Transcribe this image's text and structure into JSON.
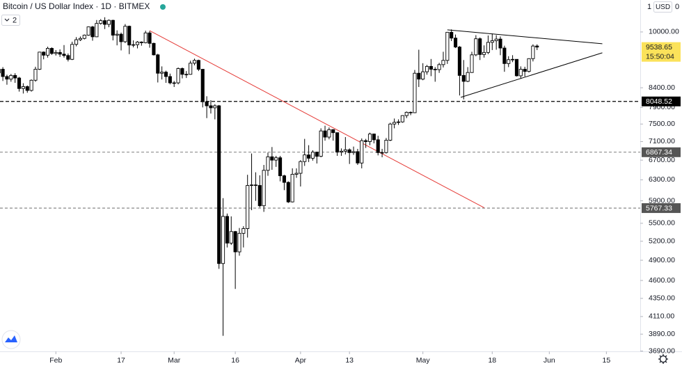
{
  "chart_data": {
    "type": "candlestick",
    "title": "Bitcoin / US Dollar Index · 1D · BITMEX",
    "collapsed_count": "2",
    "price_scale_header": {
      "left": "1",
      "unit": "USD",
      "right": "0"
    },
    "countdown": "15:50:04",
    "log_scale": true,
    "grid": false,
    "up_color": "#ffffff",
    "down_color": "#000000",
    "border_color": "#000000",
    "xlim": [
      0.3,
      157.3
    ],
    "ylim": [
      3646,
      11050
    ],
    "xticks": [
      {
        "value": 14,
        "label": "Feb"
      },
      {
        "value": 30,
        "label": "17"
      },
      {
        "value": 43,
        "label": "Mar"
      },
      {
        "value": 58,
        "label": "16"
      },
      {
        "value": 74,
        "label": "Apr"
      },
      {
        "value": 86,
        "label": "13"
      },
      {
        "value": 104,
        "label": "May"
      },
      {
        "value": 121,
        "label": "18"
      },
      {
        "value": 135,
        "label": "Jun"
      },
      {
        "value": 149,
        "label": "15"
      }
    ],
    "yticks": [
      {
        "value": 10000,
        "label": "10000.00"
      },
      {
        "value": 8400,
        "label": "8400.00"
      },
      {
        "value": 7900,
        "label": "7900.00"
      },
      {
        "value": 7500,
        "label": "7500.00"
      },
      {
        "value": 7100,
        "label": "7100.00"
      },
      {
        "value": 6700,
        "label": "6700.00"
      },
      {
        "value": 6300,
        "label": "6300.00"
      },
      {
        "value": 5900,
        "label": "5900.00"
      },
      {
        "value": 5500,
        "label": "5500.00"
      },
      {
        "value": 5200,
        "label": "5200.00"
      },
      {
        "value": 4900,
        "label": "4900.00"
      },
      {
        "value": 4600,
        "label": "4600.00"
      },
      {
        "value": 4350,
        "label": "4350.00"
      },
      {
        "value": 4110,
        "label": "4110.00"
      },
      {
        "value": 3890,
        "label": "3890.00"
      },
      {
        "value": 3690,
        "label": "3690.00"
      }
    ],
    "price_lines": [
      {
        "value": 8048.52,
        "color": "#000000",
        "dash": "5,3",
        "width": 1.3
      },
      {
        "value": 6867.34,
        "color": "#555555",
        "dash": "4,3",
        "width": 0.8
      },
      {
        "value": 5767.33,
        "color": "#555555",
        "dash": "4,3",
        "width": 0.8
      }
    ],
    "trendlines": [
      {
        "x": [
          37,
          119
        ],
        "y": [
          10040,
          5775
        ],
        "color": "#e53935"
      },
      {
        "x": [
          110,
          148
        ],
        "y": [
          10066,
          9637
        ],
        "color": "#000000"
      },
      {
        "x": [
          113.3,
          148
        ],
        "y": [
          8153,
          9369
        ],
        "color": "#000000"
      }
    ],
    "open": [
      8800,
      8900,
      8700,
      8630,
      8730,
      8660,
      8380,
      8430,
      8330,
      8600,
      8900,
      9390,
      9300,
      9500,
      9350,
      9380,
      9330,
      9290,
      9180,
      9620,
      9760,
      9800,
      9900,
      10160,
      9850,
      10270,
      10360,
      10240,
      10370,
      9900,
      9930,
      9700,
      10180,
      9600,
      9610,
      9690,
      9670,
      9970,
      9650,
      9310,
      8790,
      8820,
      8700,
      8530,
      8530,
      8920,
      8760,
      8760,
      9070,
      9150,
      8900,
      8040,
      7940,
      7890,
      7940,
      4850,
      5620,
      5170,
      5360,
      5030,
      5330,
      5410,
      6190,
      6200,
      6190,
      5810,
      6490,
      6770,
      6700,
      6750,
      6380,
      6250,
      5880,
      6410,
      6430,
      6670,
      6810,
      6740,
      6870,
      6780,
      7340,
      7200,
      7370,
      7300,
      6870,
      6890,
      6920,
      6860,
      6880,
      6640,
      7120,
      7100,
      7270,
      7140,
      6860,
      6860,
      7130,
      7500,
      7540,
      7550,
      7700,
      7780,
      7770,
      8790,
      8630,
      8830,
      8980,
      8900,
      8890,
      9030,
      9150,
      9990,
      9810,
      9540,
      8730,
      8570,
      8810,
      9310,
      9790,
      9320,
      9380,
      9680,
      9730,
      9780,
      9510,
      9060,
      9170,
      9180,
      8720,
      8900,
      8840,
      9200,
      9570
    ],
    "high": [
      9000,
      8960,
      8750,
      8770,
      8790,
      8690,
      8520,
      8460,
      8620,
      8970,
      9400,
      9410,
      9550,
      9530,
      9450,
      9470,
      9600,
      9350,
      9700,
      9840,
      9860,
      9920,
      10170,
      10190,
      10380,
      10410,
      10470,
      10400,
      10390,
      10050,
      9980,
      10250,
      10200,
      9740,
      9720,
      9710,
      10040,
      10030,
      9670,
      9340,
      8980,
      8860,
      8780,
      8580,
      8950,
      8950,
      8850,
      9140,
      9200,
      9170,
      8900,
      8180,
      8080,
      7980,
      7960,
      5950,
      5670,
      5620,
      5370,
      5420,
      5450,
      6400,
      6840,
      6450,
      6390,
      6600,
      6860,
      6980,
      6790,
      6790,
      6400,
      6270,
      6530,
      6530,
      6700,
      7160,
      7020,
      6910,
      6880,
      7400,
      7460,
      7420,
      7380,
      7300,
      6950,
      7200,
      6950,
      6990,
      6940,
      7170,
      7160,
      7300,
      7280,
      7230,
      6940,
      7180,
      7530,
      7630,
      7610,
      7710,
      7800,
      7800,
      8880,
      9460,
      9070,
      9020,
      9190,
      8960,
      9080,
      9400,
      10000,
      10080,
      9920,
      9570,
      9160,
      8960,
      9400,
      9900,
      9830,
      9590,
      9890,
      9950,
      9900,
      9860,
      9580,
      9270,
      9300,
      9180,
      8980,
      8970,
      9210,
      9620,
      9620
    ],
    "low": [
      8700,
      8580,
      8480,
      8560,
      8530,
      8300,
      8250,
      8270,
      8300,
      8560,
      8880,
      9180,
      9230,
      9310,
      9290,
      9250,
      9230,
      9120,
      9160,
      9560,
      9720,
      9770,
      9880,
      9730,
      9840,
      10230,
      10090,
      10150,
      9740,
      9590,
      9440,
      9660,
      9330,
      9530,
      9500,
      9580,
      9650,
      9520,
      9290,
      8540,
      8620,
      8530,
      8490,
      8420,
      8490,
      8650,
      8660,
      8750,
      9010,
      8850,
      7900,
      7640,
      7750,
      7610,
      4770,
      3870,
      5100,
      5140,
      4480,
      4970,
      5100,
      5260,
      5730,
      5900,
      5780,
      5700,
      6380,
      6500,
      6560,
      6270,
      6100,
      5860,
      5870,
      6340,
      6170,
      6580,
      6660,
      6690,
      6630,
      6760,
      7120,
      7150,
      7120,
      6790,
      6790,
      6820,
      6620,
      6810,
      6600,
      6530,
      6960,
      7020,
      7060,
      6800,
      6760,
      6840,
      7110,
      7400,
      7480,
      7530,
      7640,
      7710,
      7760,
      8420,
      8600,
      8750,
      8710,
      8560,
      8800,
      8950,
      9050,
      9720,
      9510,
      8200,
      8100,
      8550,
      8800,
      9270,
      9160,
      9230,
      9330,
      9450,
      9460,
      9300,
      8830,
      8960,
      9100,
      8700,
      8640,
      8700,
      8810,
      9120,
      9450
    ],
    "close": [
      8900,
      8700,
      8630,
      8730,
      8660,
      8380,
      8430,
      8330,
      8600,
      8900,
      9390,
      9300,
      9500,
      9350,
      9380,
      9330,
      9290,
      9180,
      9620,
      9760,
      9800,
      9900,
      10160,
      9850,
      10270,
      10360,
      10240,
      10370,
      9900,
      9930,
      9700,
      10180,
      9600,
      9610,
      9690,
      9670,
      9970,
      9650,
      9310,
      8790,
      8820,
      8700,
      8530,
      8530,
      8920,
      8760,
      8760,
      9070,
      9150,
      8900,
      8040,
      7940,
      7890,
      7940,
      4850,
      5620,
      5170,
      5360,
      5030,
      5330,
      5410,
      6190,
      6200,
      6190,
      5810,
      6490,
      6770,
      6700,
      6750,
      6380,
      6250,
      5880,
      6410,
      6430,
      6670,
      6810,
      6740,
      6870,
      6780,
      7340,
      7200,
      7370,
      7300,
      6870,
      6890,
      6920,
      6860,
      6880,
      6640,
      7120,
      7100,
      7270,
      7140,
      6860,
      6860,
      7130,
      7500,
      7540,
      7550,
      7700,
      7780,
      7770,
      8790,
      8630,
      8830,
      8980,
      8900,
      8890,
      9030,
      9150,
      9990,
      9810,
      9540,
      8730,
      8570,
      8810,
      9310,
      9790,
      9320,
      9380,
      9680,
      9730,
      9780,
      9510,
      9060,
      9170,
      9180,
      8720,
      8900,
      8840,
      9200,
      9570,
      9538.65
    ]
  }
}
